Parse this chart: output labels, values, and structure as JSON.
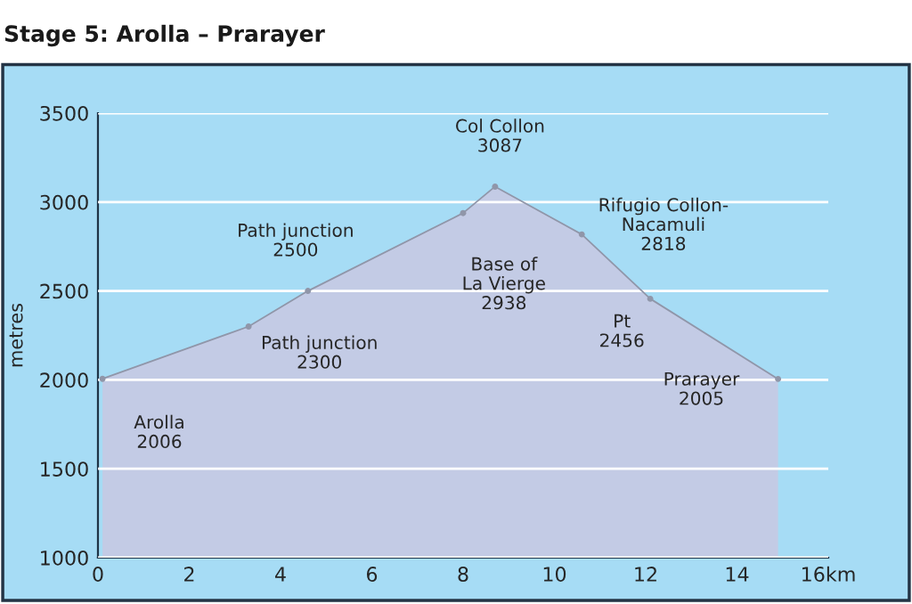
{
  "chart_data": {
    "type": "area",
    "title": "Stage 5: Arolla – Prarayer",
    "ylabel": "metres",
    "x": [
      0.1,
      3.3,
      4.6,
      8.0,
      8.7,
      10.6,
      12.1,
      14.9
    ],
    "series": [
      {
        "color": "#c3cbe5",
        "values": [
          2006,
          2300,
          2500,
          2938,
          3087,
          2818,
          2456,
          2005
        ]
      }
    ],
    "xlim": [
      0,
      16
    ],
    "xticks": [
      0,
      2,
      4,
      6,
      8,
      10,
      12,
      14,
      {
        "value": 16,
        "label": "16km"
      }
    ],
    "ylim": [
      1000,
      3500
    ],
    "yticks": [
      1000,
      1500,
      2000,
      2500,
      3000,
      3500
    ],
    "grid": "y",
    "marker": "circle",
    "line_style": "solid",
    "annotations": [
      {
        "text": "Arolla\n2006",
        "x": 0.1,
        "y": 2006
      },
      {
        "text": "Path junction\n2300",
        "x": 3.3,
        "y": 2300
      },
      {
        "text": "Path junction\n2500",
        "x": 4.6,
        "y": 2500
      },
      {
        "text": "Base of\nLa Vierge\n2938",
        "x": 8.0,
        "y": 2938
      },
      {
        "text": "Col Collon\n3087",
        "x": 8.7,
        "y": 3087
      },
      {
        "text": "Rifugio Collon-\nNacamuli\n2818",
        "x": 10.6,
        "y": 2818
      },
      {
        "text": "Pt\n2456",
        "x": 12.1,
        "y": 2456
      },
      {
        "text": "Prarayer\n2005",
        "x": 14.9,
        "y": 2005
      }
    ]
  }
}
